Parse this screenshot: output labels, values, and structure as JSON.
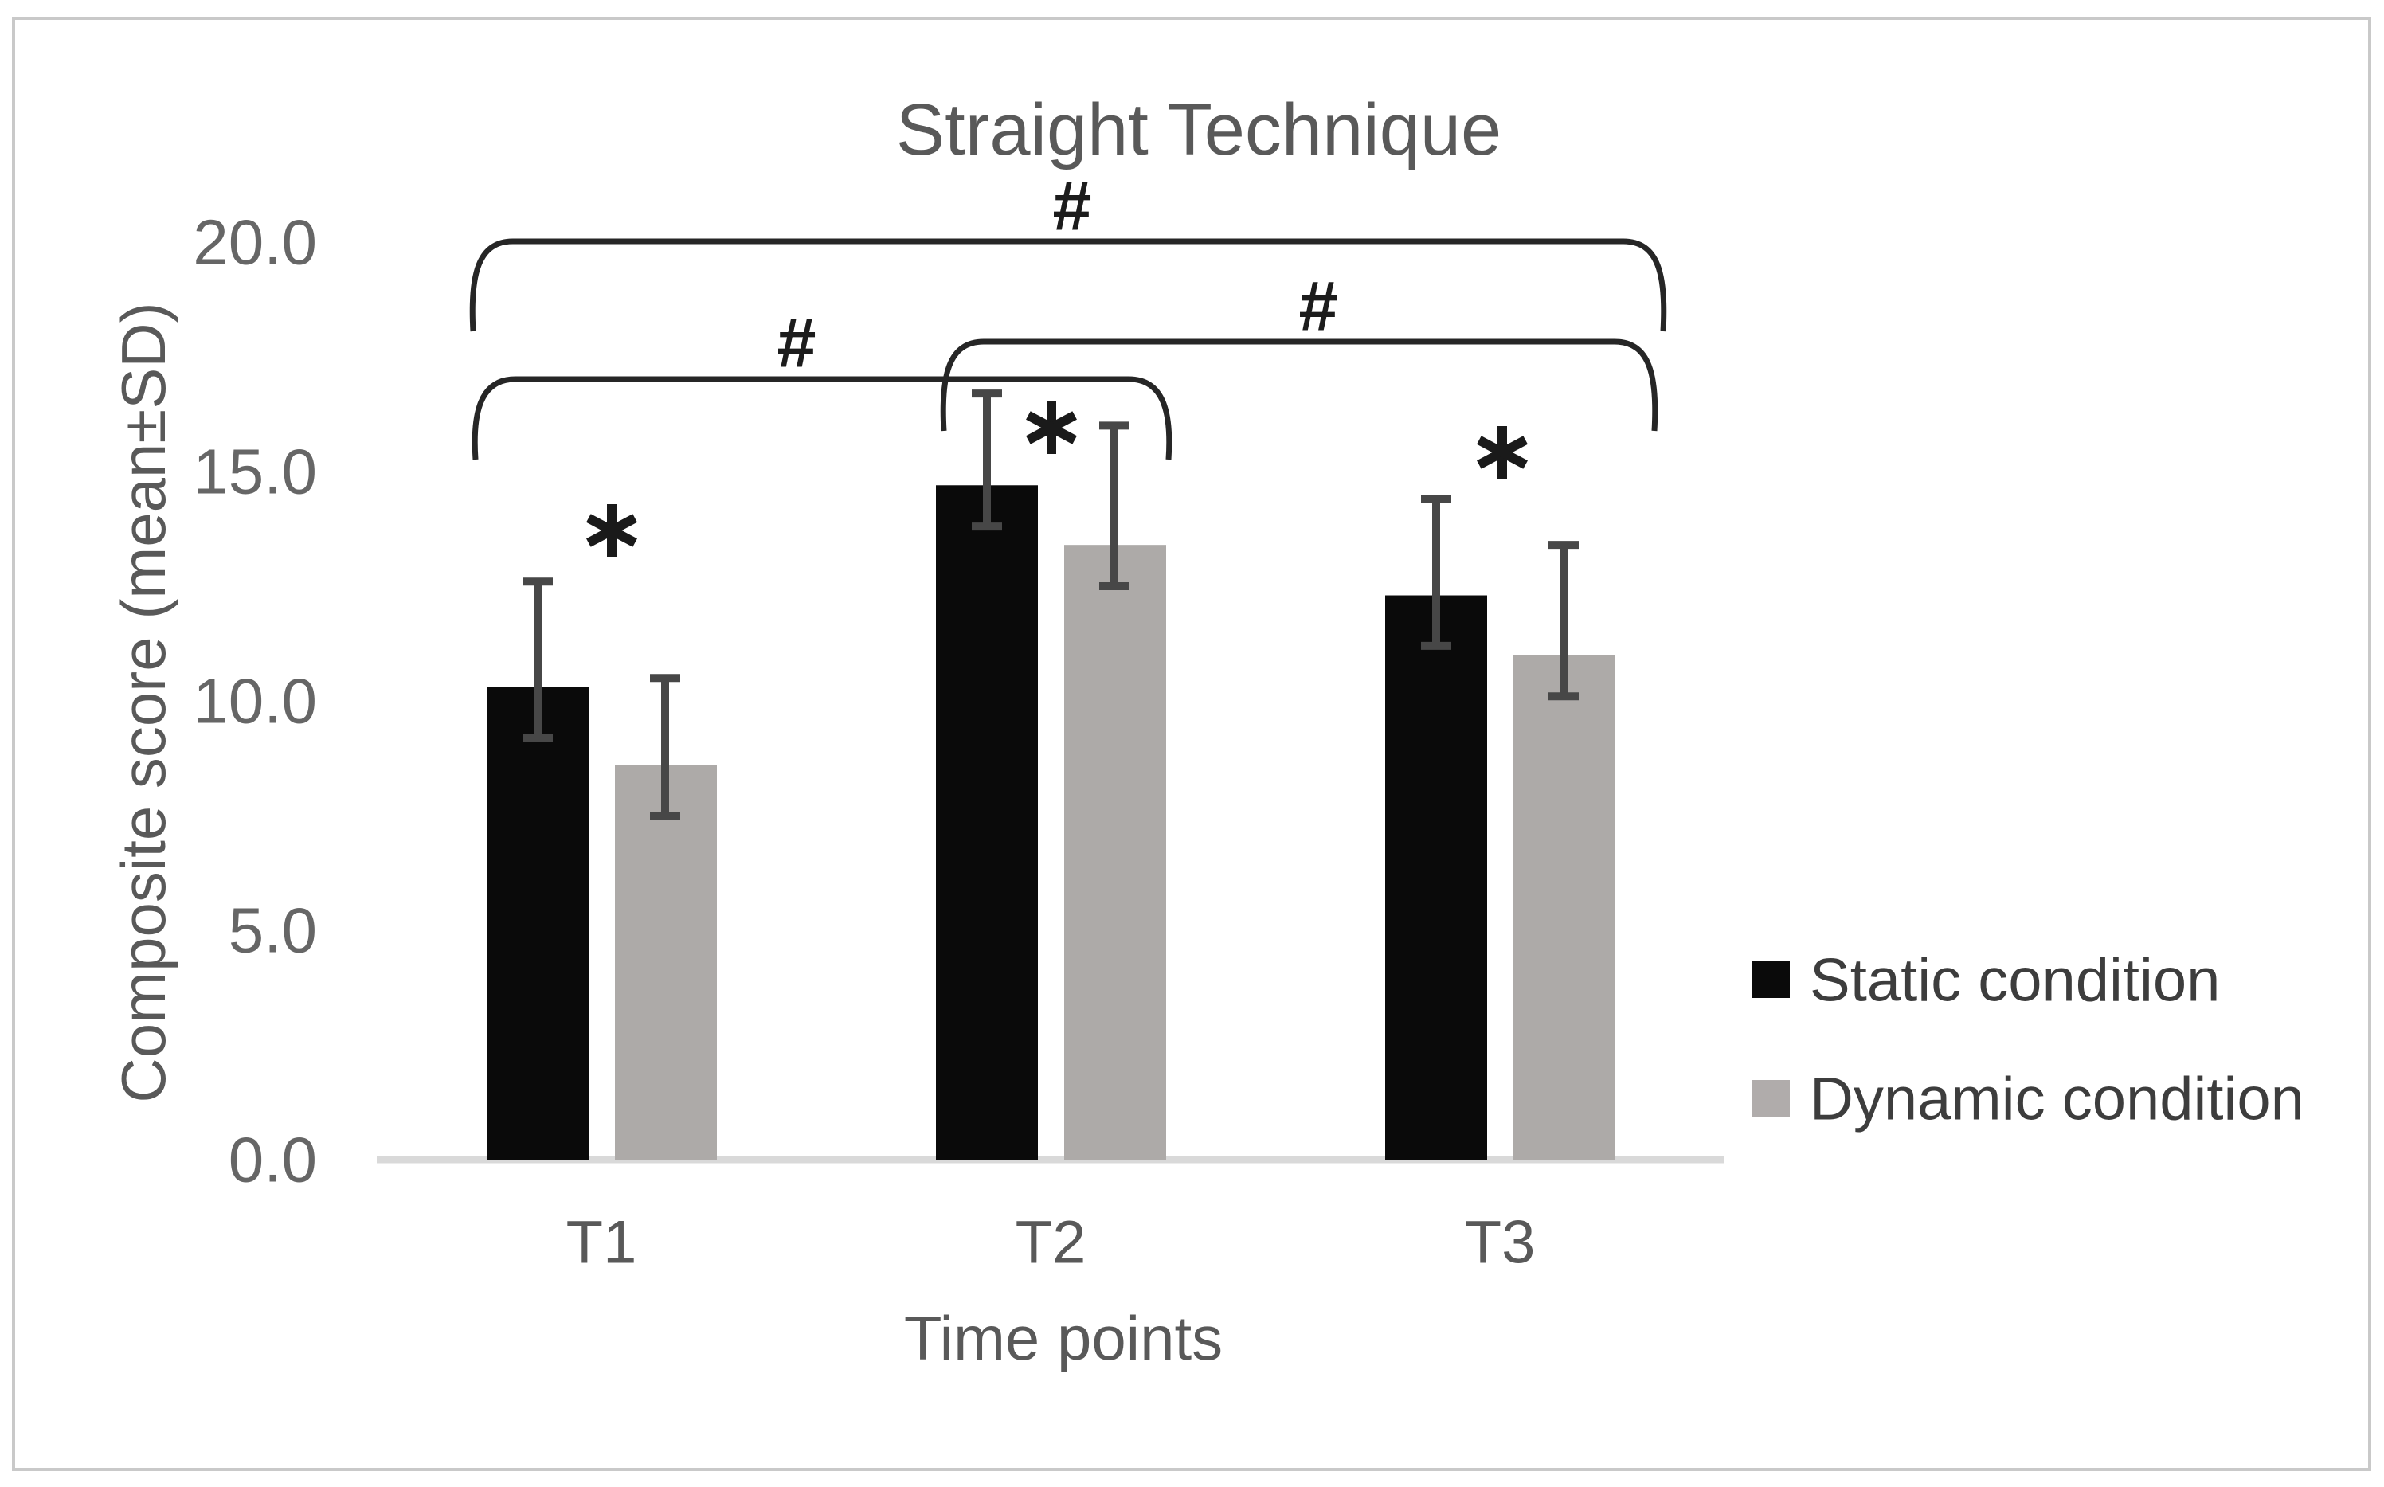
{
  "figure": {
    "title": "Straight Technique",
    "y_axis": {
      "title": "Composite score (mean±SD)",
      "tick_labels": [
        "20.0",
        "15.0",
        "10.0",
        "5.0",
        "0.0"
      ],
      "tick_values": [
        20,
        15,
        10,
        5,
        0
      ]
    },
    "x_axis": {
      "title": "Time points",
      "categories": [
        "T1",
        "T2",
        "T3"
      ]
    },
    "legend": [
      {
        "label": "Static condition",
        "color": "#0a0a0a"
      },
      {
        "label": "Dynamic condition",
        "color": "#b0acab"
      }
    ]
  },
  "chart_data": {
    "type": "bar",
    "title": "Straight Technique",
    "xlabel": "Time points",
    "ylabel": "Composite score (mean±SD)",
    "categories": [
      "T1",
      "T2",
      "T3"
    ],
    "ylim": [
      0,
      20
    ],
    "ytick_interval": 5,
    "grid": "off",
    "legend_position": "right",
    "series": [
      {
        "name": "Static condition",
        "color": "#0a0a0a",
        "values": [
          10.3,
          14.7,
          12.3
        ],
        "error_top": [
          12.6,
          16.7,
          14.4
        ],
        "error_bottom": [
          9.2,
          13.8,
          11.2
        ]
      },
      {
        "name": "Dynamic condition",
        "color": "#adaaa8",
        "values": [
          8.6,
          13.4,
          11.0
        ],
        "error_top": [
          10.5,
          16.0,
          13.4
        ],
        "error_bottom": [
          7.5,
          12.5,
          10.1
        ]
      }
    ],
    "annotations": {
      "asterisks": [
        {
          "symbol": "*",
          "x": 768,
          "y": 666
        },
        {
          "symbol": "*",
          "x": 1320,
          "y": 537
        },
        {
          "symbol": "*",
          "x": 1886,
          "y": 568
        }
      ],
      "brackets": [
        {
          "symbol": "#",
          "x1": 594,
          "x2": 2088,
          "y": 303,
          "drop": 113,
          "sym_x": 1346,
          "sym_y": 258
        },
        {
          "symbol": "#",
          "x1": 597,
          "x2": 1467,
          "y": 476,
          "drop": 101,
          "sym_x": 1000,
          "sym_y": 430
        },
        {
          "symbol": "#",
          "x1": 1185,
          "x2": 2077,
          "y": 429,
          "drop": 112,
          "sym_x": 1655,
          "sym_y": 384
        }
      ]
    }
  }
}
